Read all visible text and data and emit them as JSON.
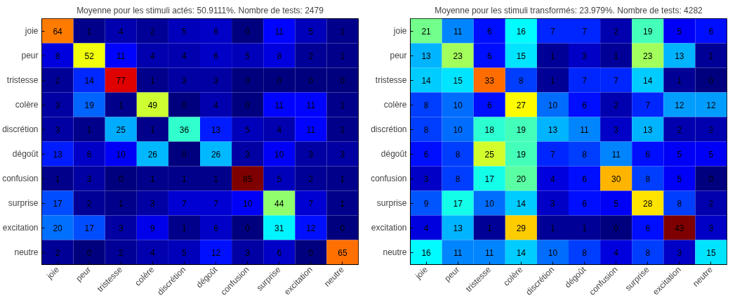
{
  "chart_data": [
    {
      "type": "heatmap",
      "title": "Moyenne pour les stimuli actés: 50.9111%. Nombre de tests: 2479",
      "categories": [
        "joie",
        "peur",
        "tristesse",
        "colère",
        "discrétion",
        "dégoût",
        "confusion",
        "surprise",
        "excitation",
        "neutre"
      ],
      "y_categories": [
        "joie",
        "peur",
        "tristesse",
        "colère",
        "discrétion",
        "dégoût",
        "confusion",
        "surprise",
        "excitation",
        "neutre"
      ],
      "cells": [
        [
          64,
          1,
          4,
          2,
          5,
          6,
          0,
          11,
          5,
          1
        ],
        [
          8,
          52,
          11,
          4,
          4,
          6,
          5,
          8,
          2,
          1
        ],
        [
          2,
          14,
          77,
          1,
          3,
          3,
          0,
          0,
          0,
          0
        ],
        [
          3,
          19,
          1,
          49,
          0,
          4,
          0,
          11,
          11,
          1
        ],
        [
          3,
          1,
          25,
          1,
          36,
          13,
          5,
          4,
          11,
          1
        ],
        [
          13,
          6,
          10,
          26,
          0,
          26,
          3,
          10,
          3,
          3
        ],
        [
          1,
          3,
          0,
          1,
          1,
          1,
          85,
          5,
          2,
          1
        ],
        [
          17,
          2,
          1,
          3,
          7,
          7,
          10,
          44,
          7,
          1
        ],
        [
          20,
          17,
          3,
          9,
          1,
          6,
          0,
          31,
          12,
          0
        ],
        [
          2,
          0,
          2,
          4,
          5,
          12,
          3,
          6,
          0,
          65
        ]
      ],
      "data_labels": true
    },
    {
      "type": "heatmap",
      "title": "Moyenne pour les stimuli transformés: 23.979%. Nombre de tests: 4282",
      "categories": [
        "joie",
        "peur",
        "tristesse",
        "colère",
        "discrétion",
        "dégoût",
        "confusion",
        "surprise",
        "excitation",
        "neutre"
      ],
      "y_categories": [
        "joie",
        "peur",
        "tristesse",
        "colère",
        "discrétion",
        "dégoût",
        "confusion",
        "surprise",
        "excitation",
        "neutre"
      ],
      "cells": [
        [
          21,
          11,
          6,
          16,
          7,
          7,
          2,
          19,
          5,
          6
        ],
        [
          13,
          23,
          6,
          15,
          1,
          3,
          1,
          23,
          13,
          1
        ],
        [
          14,
          15,
          33,
          8,
          1,
          7,
          7,
          14,
          1,
          0
        ],
        [
          8,
          10,
          6,
          27,
          10,
          6,
          2,
          7,
          12,
          12
        ],
        [
          8,
          10,
          18,
          19,
          13,
          11,
          3,
          13,
          2,
          2
        ],
        [
          6,
          8,
          25,
          19,
          7,
          8,
          11,
          6,
          5,
          5
        ],
        [
          3,
          8,
          17,
          20,
          4,
          6,
          30,
          8,
          5,
          0
        ],
        [
          9,
          17,
          10,
          14,
          3,
          6,
          5,
          28,
          8,
          2
        ],
        [
          4,
          13,
          1,
          29,
          1,
          1,
          0,
          6,
          43,
          3
        ],
        [
          16,
          11,
          11,
          14,
          10,
          8,
          4,
          8,
          3,
          15
        ]
      ],
      "data_labels": true
    }
  ]
}
